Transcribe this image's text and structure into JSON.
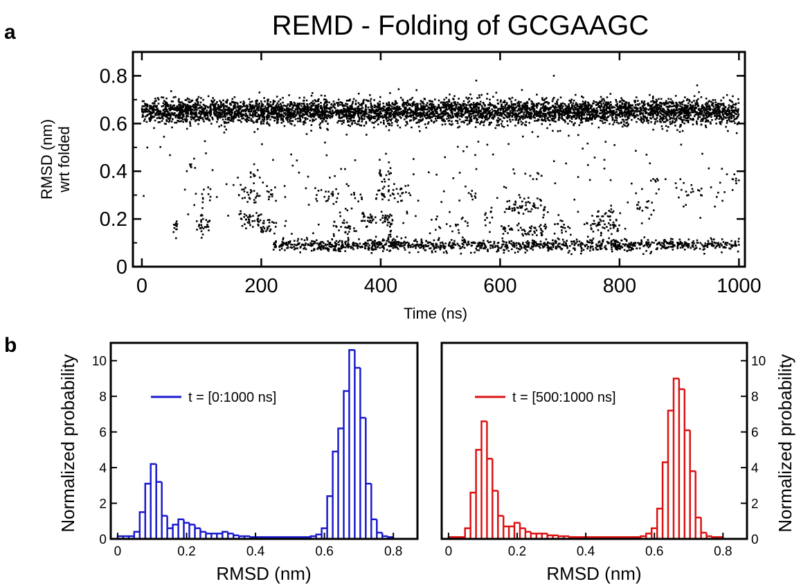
{
  "panel_labels": {
    "a": "a",
    "b": "b"
  },
  "colors": {
    "axis": "#000000",
    "scatter": "#000000",
    "hist_blue": "#1a1acc",
    "hist_red": "#dd1111"
  },
  "chart_data": [
    {
      "id": "a",
      "type": "scatter",
      "title": "REMD - Folding of GCGAAGC",
      "xlabel": "Time (ns)",
      "ylabel_line1": "RMSD (nm)",
      "ylabel_line2": "wrt folded",
      "xlim": [
        -15,
        1010
      ],
      "ylim": [
        0,
        0.9
      ],
      "xticks": [
        0,
        200,
        400,
        600,
        800,
        1000
      ],
      "xtick_labels": [
        "0",
        "200",
        "400",
        "600",
        "800",
        "1000"
      ],
      "yticks": [
        0,
        0.2,
        0.4,
        0.6,
        0.8
      ],
      "ytick_labels": [
        "0",
        "0.2",
        "0.4",
        "0.6",
        "0.8"
      ],
      "grid": false,
      "series": [
        {
          "description_of_density": "time-resolved RMSD samples; dense unfolded band near 0.65 nm throughout, folded band near 0.09 nm from ~220 ns onward, sparse intermediates 0.15-0.45 nm",
          "bands": [
            {
              "t_range": [
                0,
                1000
              ],
              "center": 0.65,
              "spread": 0.025,
              "points_per_ns": 5
            },
            {
              "t_range": [
                220,
                1000
              ],
              "center": 0.09,
              "spread": 0.012,
              "points_per_ns": 1.4
            }
          ],
          "clusters": [
            {
              "t": [
                50,
                60
              ],
              "y": 0.17,
              "n": 12
            },
            {
              "t": [
                95,
                115
              ],
              "y": 0.18,
              "n": 25
            },
            {
              "t": [
                100,
                115
              ],
              "y": 0.29,
              "n": 10
            },
            {
              "t": [
                80,
                90
              ],
              "y": 0.43,
              "n": 6
            },
            {
              "t": [
                160,
                200
              ],
              "y": 0.2,
              "n": 40
            },
            {
              "t": [
                160,
                200
              ],
              "y": 0.3,
              "n": 25
            },
            {
              "t": [
                180,
                200
              ],
              "y": 0.38,
              "n": 8
            },
            {
              "t": [
                200,
                225
              ],
              "y": 0.17,
              "n": 25
            },
            {
              "t": [
                205,
                225
              ],
              "y": 0.3,
              "n": 12
            },
            {
              "t": [
                290,
                330
              ],
              "y": 0.29,
              "n": 20
            },
            {
              "t": [
                320,
                360
              ],
              "y": 0.16,
              "n": 25
            },
            {
              "t": [
                350,
                370
              ],
              "y": 0.3,
              "n": 8
            },
            {
              "t": [
                370,
                420
              ],
              "y": 0.2,
              "n": 50
            },
            {
              "t": [
                390,
                450
              ],
              "y": 0.31,
              "n": 40
            },
            {
              "t": [
                395,
                420
              ],
              "y": 0.38,
              "n": 15
            },
            {
              "t": [
                410,
                430
              ],
              "y": 0.13,
              "n": 15
            },
            {
              "t": [
                490,
                560
              ],
              "y": 0.18,
              "n": 15
            },
            {
              "t": [
                540,
                560
              ],
              "y": 0.3,
              "n": 8
            },
            {
              "t": [
                570,
                590
              ],
              "y": 0.22,
              "n": 10
            },
            {
              "t": [
                600,
                620
              ],
              "y": 0.16,
              "n": 15
            },
            {
              "t": [
                610,
                680
              ],
              "y": 0.25,
              "n": 60
            },
            {
              "t": [
                620,
                680
              ],
              "y": 0.15,
              "n": 40
            },
            {
              "t": [
                640,
                670
              ],
              "y": 0.38,
              "n": 8
            },
            {
              "t": [
                690,
                720
              ],
              "y": 0.17,
              "n": 15
            },
            {
              "t": [
                740,
                800
              ],
              "y": 0.17,
              "n": 45
            },
            {
              "t": [
                760,
                790
              ],
              "y": 0.22,
              "n": 20
            },
            {
              "t": [
                820,
                860
              ],
              "y": 0.25,
              "n": 15
            },
            {
              "t": [
                850,
                870
              ],
              "y": 0.35,
              "n": 6
            },
            {
              "t": [
                890,
                940
              ],
              "y": 0.31,
              "n": 15
            },
            {
              "t": [
                960,
                980
              ],
              "y": 0.31,
              "n": 5
            },
            {
              "t": [
                985,
                1000
              ],
              "y": 0.36,
              "n": 8
            }
          ],
          "scattered_points": 180
        }
      ]
    },
    {
      "id": "b-left",
      "type": "bar",
      "style": "step-histogram",
      "xlabel": "RMSD (nm)",
      "ylabel": "Normalized probability",
      "xlim": [
        -0.02,
        0.87
      ],
      "ylim": [
        0,
        11
      ],
      "xticks": [
        0,
        0.2,
        0.4,
        0.6,
        0.8
      ],
      "xtick_labels": [
        "0",
        "0.2",
        "0.4",
        "0.6",
        "0.8"
      ],
      "yticks": [
        0,
        2,
        4,
        6,
        8,
        10
      ],
      "ytick_labels": [
        "0",
        "2",
        "4",
        "6",
        "8",
        "10"
      ],
      "legend_position": "upper-left",
      "series": [
        {
          "name": "t = [0:1000 ns]",
          "color": "#1a1acc",
          "bin_start": 0.0,
          "bin_width": 0.016,
          "values": [
            0.15,
            0.15,
            0.15,
            0.4,
            1.5,
            3.1,
            4.2,
            3.2,
            1.3,
            0.6,
            0.8,
            1.1,
            0.9,
            0.8,
            0.6,
            0.4,
            0.3,
            0.3,
            0.3,
            0.4,
            0.3,
            0.2,
            0.15,
            0.15,
            0.1,
            0.1,
            0.1,
            0.1,
            0.1,
            0.1,
            0.1,
            0.1,
            0.1,
            0.1,
            0.1,
            0.15,
            0.25,
            0.6,
            2.4,
            4.9,
            6.2,
            8.3,
            10.6,
            9.6,
            6.8,
            3.1,
            1.1,
            0.35,
            0.15,
            0.1
          ]
        }
      ]
    },
    {
      "id": "b-right",
      "type": "bar",
      "style": "step-histogram",
      "xlabel": "RMSD (nm)",
      "ylabel": "Normalized probability",
      "xlim": [
        -0.02,
        0.87
      ],
      "ylim": [
        0,
        11
      ],
      "xticks": [
        0,
        0.2,
        0.4,
        0.6,
        0.8
      ],
      "xtick_labels": [
        "0",
        "0.2",
        "0.4",
        "0.6",
        "0.8"
      ],
      "yticks": [
        0,
        2,
        4,
        6,
        8,
        10
      ],
      "ytick_labels": [
        "0",
        "2",
        "4",
        "6",
        "8",
        "10"
      ],
      "legend_position": "upper-left",
      "series": [
        {
          "name": "t = [500:1000 ns]",
          "color": "#dd1111",
          "bin_start": 0.0,
          "bin_width": 0.016,
          "values": [
            0.1,
            0.1,
            0.1,
            0.6,
            2.6,
            5.0,
            6.6,
            4.5,
            2.7,
            1.3,
            0.7,
            0.7,
            0.9,
            0.6,
            0.4,
            0.3,
            0.3,
            0.3,
            0.2,
            0.2,
            0.15,
            0.15,
            0.1,
            0.1,
            0.1,
            0.1,
            0.1,
            0.1,
            0.1,
            0.1,
            0.1,
            0.1,
            0.1,
            0.1,
            0.1,
            0.15,
            0.3,
            0.6,
            1.7,
            4.3,
            7.2,
            9.0,
            8.4,
            6.1,
            3.8,
            1.2,
            0.35,
            0.15,
            0.1,
            0.1
          ]
        }
      ]
    }
  ]
}
